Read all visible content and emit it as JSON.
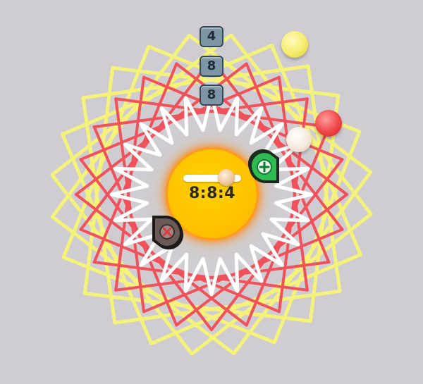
{
  "game": {
    "ratio_label": "8:8:4",
    "counters": [
      "4",
      "8",
      "8"
    ],
    "slider_value": 0.85
  },
  "colors": {
    "background": "#cfcdd2",
    "outer_polygons": "#f5f27a",
    "red_star": "#f0515a",
    "white_star": "#ffffff",
    "sun": "#ffc400",
    "add_button": "#27b34d",
    "remove_button": "#6a5a58"
  },
  "icons": {
    "add": "plus-icon",
    "remove": "cross-icon"
  }
}
